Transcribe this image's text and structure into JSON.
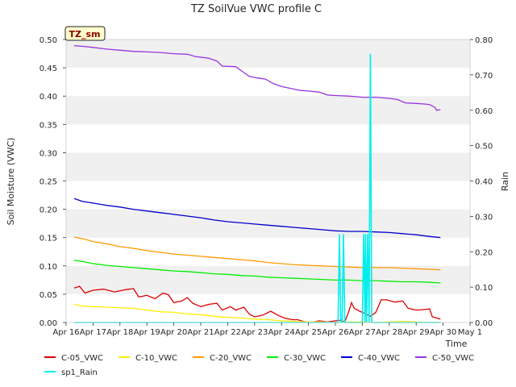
{
  "chart_data": {
    "type": "line",
    "title": "TZ SoilVue VWC profile C",
    "site_badge": "TZ_sm",
    "ylabel": "Soil Moisture (VWC)",
    "y2label": "Rain",
    "xlabel": "Time",
    "ylim": [
      0,
      0.5
    ],
    "y2lim": [
      0,
      0.8
    ],
    "xlim": [
      16,
      31
    ],
    "y_ticks": [
      "0.00",
      "0.05",
      "0.10",
      "0.15",
      "0.20",
      "0.25",
      "0.30",
      "0.35",
      "0.40",
      "0.45",
      "0.50"
    ],
    "y2_ticks": [
      "0.00",
      "0.10",
      "0.20",
      "0.30",
      "0.40",
      "0.50",
      "0.60",
      "0.70",
      "0.80"
    ],
    "x_ticks": [
      "Apr 16",
      "Apr 17",
      "Apr 18",
      "Apr 19",
      "Apr 20",
      "Apr 21",
      "Apr 22",
      "Apr 23",
      "Apr 24",
      "Apr 25",
      "Apr 26",
      "Apr 27",
      "Apr 28",
      "Apr 29",
      "Apr 30",
      "May 1"
    ],
    "grid": "horizontal bands",
    "legend_position": "bottom",
    "series": [
      {
        "name": "C-05_VWC",
        "color": "#dd0000",
        "axis": "left",
        "points": [
          [
            16.3,
            0.061
          ],
          [
            16.5,
            0.064
          ],
          [
            16.7,
            0.052
          ],
          [
            17.0,
            0.057
          ],
          [
            17.4,
            0.059
          ],
          [
            17.8,
            0.054
          ],
          [
            18.2,
            0.058
          ],
          [
            18.5,
            0.06
          ],
          [
            18.7,
            0.045
          ],
          [
            19.0,
            0.048
          ],
          [
            19.3,
            0.042
          ],
          [
            19.6,
            0.052
          ],
          [
            19.8,
            0.049
          ],
          [
            20.0,
            0.035
          ],
          [
            20.3,
            0.038
          ],
          [
            20.5,
            0.044
          ],
          [
            20.7,
            0.034
          ],
          [
            21.0,
            0.028
          ],
          [
            21.3,
            0.032
          ],
          [
            21.6,
            0.034
          ],
          [
            21.8,
            0.022
          ],
          [
            22.1,
            0.028
          ],
          [
            22.3,
            0.022
          ],
          [
            22.6,
            0.027
          ],
          [
            22.8,
            0.015
          ],
          [
            23.0,
            0.01
          ],
          [
            23.3,
            0.013
          ],
          [
            23.6,
            0.02
          ],
          [
            23.9,
            0.012
          ],
          [
            24.1,
            0.008
          ],
          [
            24.4,
            0.005
          ],
          [
            24.6,
            0.005
          ],
          [
            24.8,
            0.002
          ],
          [
            25.1,
            0.0
          ],
          [
            25.4,
            0.003
          ],
          [
            25.7,
            0.001
          ],
          [
            26.0,
            0.003
          ],
          [
            26.2,
            0.004
          ],
          [
            26.35,
            0.001
          ],
          [
            26.5,
            0.02
          ],
          [
            26.6,
            0.035
          ],
          [
            26.7,
            0.025
          ],
          [
            26.9,
            0.02
          ],
          [
            27.1,
            0.016
          ],
          [
            27.3,
            0.011
          ],
          [
            27.5,
            0.018
          ],
          [
            27.7,
            0.04
          ],
          [
            27.9,
            0.04
          ],
          [
            28.2,
            0.036
          ],
          [
            28.5,
            0.038
          ],
          [
            28.7,
            0.025
          ],
          [
            29.0,
            0.022
          ],
          [
            29.3,
            0.023
          ],
          [
            29.5,
            0.024
          ],
          [
            29.6,
            0.01
          ],
          [
            29.9,
            0.006
          ]
        ]
      },
      {
        "name": "C-10_VWC",
        "color": "#ffee00",
        "axis": "left",
        "points": [
          [
            16.3,
            0.032
          ],
          [
            16.6,
            0.029
          ],
          [
            17.0,
            0.028
          ],
          [
            17.5,
            0.027
          ],
          [
            18.0,
            0.026
          ],
          [
            18.5,
            0.025
          ],
          [
            19.0,
            0.022
          ],
          [
            19.5,
            0.019
          ],
          [
            20.0,
            0.018
          ],
          [
            20.5,
            0.015
          ],
          [
            21.0,
            0.014
          ],
          [
            21.5,
            0.011
          ],
          [
            22.0,
            0.009
          ],
          [
            22.5,
            0.008
          ],
          [
            23.0,
            0.006
          ],
          [
            23.5,
            0.005
          ],
          [
            24.0,
            0.003
          ],
          [
            24.5,
            0.002
          ],
          [
            25.0,
            0.001
          ],
          [
            25.5,
            0.001
          ],
          [
            26.0,
            0.0
          ],
          [
            26.5,
            0.001
          ],
          [
            27.0,
            0.001
          ],
          [
            27.5,
            0.0
          ],
          [
            28.0,
            0.001
          ],
          [
            28.5,
            0.002
          ],
          [
            29.0,
            0.001
          ],
          [
            29.5,
            0.0
          ],
          [
            29.9,
            0.0
          ]
        ]
      },
      {
        "name": "C-20_VWC",
        "color": "#ff9900",
        "axis": "left",
        "points": [
          [
            16.3,
            0.151
          ],
          [
            16.7,
            0.147
          ],
          [
            17.0,
            0.143
          ],
          [
            17.5,
            0.139
          ],
          [
            18.0,
            0.134
          ],
          [
            18.5,
            0.131
          ],
          [
            19.0,
            0.127
          ],
          [
            19.5,
            0.124
          ],
          [
            20.0,
            0.121
          ],
          [
            20.5,
            0.119
          ],
          [
            21.0,
            0.117
          ],
          [
            21.5,
            0.115
          ],
          [
            22.0,
            0.113
          ],
          [
            22.5,
            0.111
          ],
          [
            23.0,
            0.109
          ],
          [
            23.5,
            0.106
          ],
          [
            24.0,
            0.104
          ],
          [
            24.5,
            0.102
          ],
          [
            25.0,
            0.101
          ],
          [
            25.5,
            0.1
          ],
          [
            26.0,
            0.099
          ],
          [
            26.5,
            0.098
          ],
          [
            27.0,
            0.097
          ],
          [
            27.5,
            0.097
          ],
          [
            28.0,
            0.097
          ],
          [
            28.5,
            0.096
          ],
          [
            29.0,
            0.095
          ],
          [
            29.5,
            0.094
          ],
          [
            29.9,
            0.093
          ]
        ]
      },
      {
        "name": "C-30_VWC",
        "color": "#00ee00",
        "axis": "left",
        "points": [
          [
            16.3,
            0.11
          ],
          [
            16.7,
            0.107
          ],
          [
            17.0,
            0.104
          ],
          [
            17.5,
            0.101
          ],
          [
            18.0,
            0.099
          ],
          [
            18.5,
            0.097
          ],
          [
            19.0,
            0.095
          ],
          [
            19.5,
            0.093
          ],
          [
            20.0,
            0.091
          ],
          [
            20.5,
            0.09
          ],
          [
            21.0,
            0.088
          ],
          [
            21.5,
            0.086
          ],
          [
            22.0,
            0.085
          ],
          [
            22.5,
            0.083
          ],
          [
            23.0,
            0.082
          ],
          [
            23.5,
            0.08
          ],
          [
            24.0,
            0.079
          ],
          [
            24.5,
            0.078
          ],
          [
            25.0,
            0.077
          ],
          [
            25.5,
            0.076
          ],
          [
            26.0,
            0.075
          ],
          [
            26.5,
            0.075
          ],
          [
            27.0,
            0.074
          ],
          [
            27.5,
            0.074
          ],
          [
            28.0,
            0.073
          ],
          [
            28.5,
            0.072
          ],
          [
            29.0,
            0.072
          ],
          [
            29.5,
            0.071
          ],
          [
            29.9,
            0.07
          ]
        ]
      },
      {
        "name": "C-40_VWC",
        "color": "#0000cc",
        "axis": "left",
        "points": [
          [
            16.3,
            0.219
          ],
          [
            16.6,
            0.214
          ],
          [
            17.0,
            0.211
          ],
          [
            17.5,
            0.207
          ],
          [
            18.0,
            0.204
          ],
          [
            18.5,
            0.2
          ],
          [
            19.0,
            0.197
          ],
          [
            19.5,
            0.194
          ],
          [
            20.0,
            0.191
          ],
          [
            20.5,
            0.188
          ],
          [
            21.0,
            0.185
          ],
          [
            21.5,
            0.181
          ],
          [
            22.0,
            0.178
          ],
          [
            22.5,
            0.176
          ],
          [
            23.0,
            0.174
          ],
          [
            23.5,
            0.172
          ],
          [
            24.0,
            0.17
          ],
          [
            24.5,
            0.168
          ],
          [
            25.0,
            0.166
          ],
          [
            25.5,
            0.164
          ],
          [
            26.0,
            0.162
          ],
          [
            26.5,
            0.161
          ],
          [
            27.0,
            0.161
          ],
          [
            27.5,
            0.16
          ],
          [
            28.0,
            0.159
          ],
          [
            28.5,
            0.157
          ],
          [
            29.0,
            0.155
          ],
          [
            29.5,
            0.152
          ],
          [
            29.9,
            0.15
          ]
        ]
      },
      {
        "name": "C-50_VWC",
        "color": "#9933dd",
        "axis": "left",
        "points": [
          [
            16.3,
            0.489
          ],
          [
            16.6,
            0.488
          ],
          [
            17.0,
            0.486
          ],
          [
            17.5,
            0.483
          ],
          [
            18.0,
            0.481
          ],
          [
            18.5,
            0.479
          ],
          [
            19.0,
            0.478
          ],
          [
            19.5,
            0.477
          ],
          [
            20.0,
            0.475
          ],
          [
            20.5,
            0.474
          ],
          [
            20.8,
            0.47
          ],
          [
            21.3,
            0.467
          ],
          [
            21.6,
            0.462
          ],
          [
            21.8,
            0.453
          ],
          [
            22.3,
            0.452
          ],
          [
            22.5,
            0.445
          ],
          [
            22.8,
            0.435
          ],
          [
            23.1,
            0.432
          ],
          [
            23.4,
            0.43
          ],
          [
            23.7,
            0.422
          ],
          [
            24.0,
            0.417
          ],
          [
            24.4,
            0.413
          ],
          [
            24.7,
            0.41
          ],
          [
            25.0,
            0.409
          ],
          [
            25.4,
            0.407
          ],
          [
            25.7,
            0.402
          ],
          [
            26.0,
            0.401
          ],
          [
            26.5,
            0.4
          ],
          [
            27.0,
            0.398
          ],
          [
            27.5,
            0.398
          ],
          [
            28.0,
            0.396
          ],
          [
            28.3,
            0.394
          ],
          [
            28.6,
            0.388
          ],
          [
            29.0,
            0.387
          ],
          [
            29.3,
            0.386
          ],
          [
            29.5,
            0.385
          ],
          [
            29.7,
            0.38
          ],
          [
            29.75,
            0.375
          ],
          [
            29.9,
            0.376
          ]
        ]
      },
      {
        "name": "sp1_Rain",
        "color": "#00eeee",
        "axis": "right",
        "points": [
          [
            16.3,
            0.0
          ],
          [
            26.1,
            0.0
          ],
          [
            26.15,
            0.25
          ],
          [
            26.2,
            0.0
          ],
          [
            26.25,
            0.0
          ],
          [
            26.3,
            0.25
          ],
          [
            26.35,
            0.0
          ],
          [
            27.0,
            0.0
          ],
          [
            27.05,
            0.25
          ],
          [
            27.1,
            0.0
          ],
          [
            27.12,
            0.25
          ],
          [
            27.16,
            0.0
          ],
          [
            27.2,
            0.25
          ],
          [
            27.25,
            0.0
          ],
          [
            27.3,
            0.76
          ],
          [
            27.35,
            0.0
          ],
          [
            29.9,
            0.0
          ]
        ]
      }
    ]
  }
}
